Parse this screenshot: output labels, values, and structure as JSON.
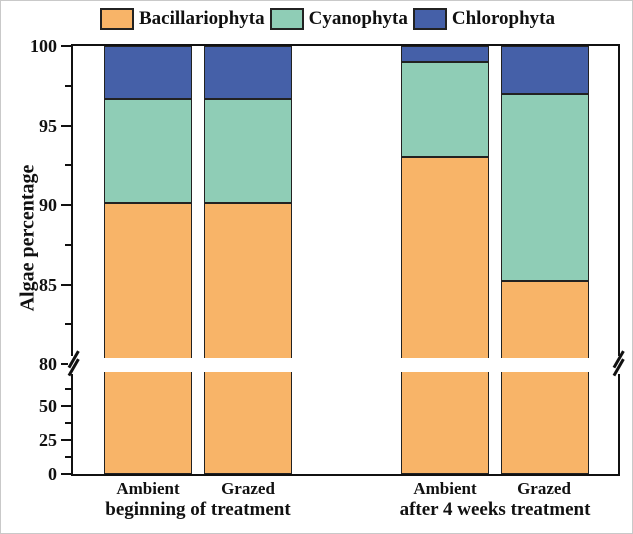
{
  "chart_data": {
    "type": "bar",
    "stacked": true,
    "title": "",
    "ylabel": "Algae percentage",
    "xlabel": "",
    "legend_position": "top",
    "grid": false,
    "axis_break": {
      "below_value": 80,
      "upper_range": [
        80,
        100
      ],
      "lower_range": [
        0,
        50
      ]
    },
    "yticks_upper": [
      100,
      95,
      90,
      85,
      80
    ],
    "yticks_lower": [
      50,
      25,
      0
    ],
    "categories": [
      "Ambient",
      "Grazed",
      "Ambient",
      "Grazed"
    ],
    "groups": [
      {
        "label": "beginning of treatment"
      },
      {
        "label": "after 4 weeks treatment"
      }
    ],
    "series": [
      {
        "name": "Bacillariophyta",
        "color": "#F8B468",
        "values": [
          90.1,
          90.1,
          93.0,
          85.2
        ]
      },
      {
        "name": "Cyanophyta",
        "color": "#8FCDB6",
        "values": [
          6.6,
          6.6,
          6.0,
          11.8
        ]
      },
      {
        "name": "Chlorophyta",
        "color": "#4560A8",
        "values": [
          3.3,
          3.3,
          1.0,
          3.0
        ]
      }
    ],
    "stack_tops": {
      "bar1": [
        90.1,
        96.7,
        100
      ],
      "bar2": [
        90.1,
        96.7,
        100
      ],
      "bar3": [
        93.0,
        99.0,
        100
      ],
      "bar4": [
        85.2,
        97.0,
        100
      ]
    }
  },
  "colors": {
    "axis": "#111111",
    "background": "#ffffff",
    "bar_border": "#222222"
  }
}
